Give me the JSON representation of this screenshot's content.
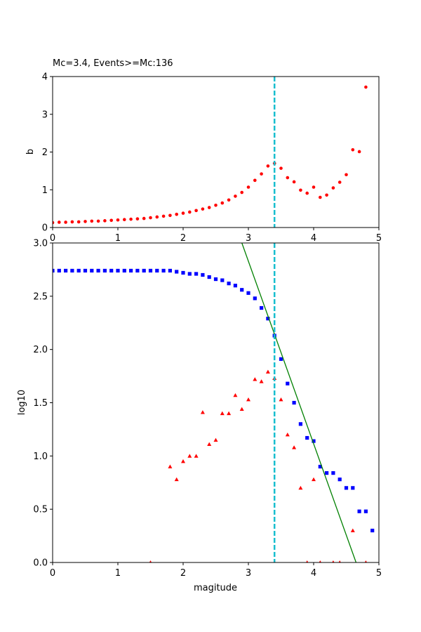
{
  "figure": {
    "title": "Mc=3.4, Events>=Mc:136"
  },
  "chart_data": [
    {
      "type": "scatter",
      "ylabel": "b",
      "xlabel": "",
      "xlim": [
        0,
        5
      ],
      "ylim": [
        0,
        4
      ],
      "xticks": [
        0,
        1,
        2,
        3,
        4,
        5
      ],
      "yticks": [
        0,
        1,
        2,
        3,
        4
      ],
      "grid": false,
      "vline": {
        "x": 3.4,
        "color": "#17becf",
        "style": "dashed"
      },
      "series": [
        {
          "marker": "circle",
          "color": "#ff0000",
          "points": [
            [
              0.0,
              0.13
            ],
            [
              0.1,
              0.14
            ],
            [
              0.2,
              0.14
            ],
            [
              0.3,
              0.15
            ],
            [
              0.4,
              0.15
            ],
            [
              0.5,
              0.16
            ],
            [
              0.6,
              0.17
            ],
            [
              0.7,
              0.17
            ],
            [
              0.8,
              0.18
            ],
            [
              0.9,
              0.19
            ],
            [
              1.0,
              0.2
            ],
            [
              1.1,
              0.21
            ],
            [
              1.2,
              0.22
            ],
            [
              1.3,
              0.23
            ],
            [
              1.4,
              0.24
            ],
            [
              1.5,
              0.26
            ],
            [
              1.6,
              0.28
            ],
            [
              1.7,
              0.3
            ],
            [
              1.8,
              0.32
            ],
            [
              1.9,
              0.35
            ],
            [
              2.0,
              0.38
            ],
            [
              2.1,
              0.41
            ],
            [
              2.2,
              0.45
            ],
            [
              2.3,
              0.49
            ],
            [
              2.4,
              0.53
            ],
            [
              2.5,
              0.59
            ],
            [
              2.6,
              0.65
            ],
            [
              2.7,
              0.73
            ],
            [
              2.8,
              0.83
            ],
            [
              2.9,
              0.93
            ],
            [
              3.0,
              1.07
            ],
            [
              3.1,
              1.25
            ],
            [
              3.2,
              1.42
            ],
            [
              3.3,
              1.63
            ],
            [
              3.4,
              1.7
            ],
            [
              3.5,
              1.57
            ],
            [
              3.6,
              1.32
            ],
            [
              3.7,
              1.21
            ],
            [
              3.8,
              0.99
            ],
            [
              3.9,
              0.91
            ],
            [
              4.0,
              1.07
            ],
            [
              4.1,
              0.8
            ],
            [
              4.2,
              0.86
            ],
            [
              4.3,
              1.05
            ],
            [
              4.4,
              1.2
            ],
            [
              4.5,
              1.4
            ],
            [
              4.6,
              2.06
            ],
            [
              4.7,
              2.01
            ],
            [
              4.8,
              3.72
            ]
          ]
        }
      ]
    },
    {
      "type": "scatter",
      "xlabel": "magitude",
      "ylabel": "log10",
      "xlim": [
        0,
        5
      ],
      "ylim": [
        0,
        3
      ],
      "xticks": [
        0,
        1,
        2,
        3,
        4,
        5
      ],
      "yticks": [
        0.0,
        0.5,
        1.0,
        1.5,
        2.0,
        2.5,
        3.0
      ],
      "grid": false,
      "vline": {
        "x": 3.4,
        "color": "#17becf",
        "style": "dashed"
      },
      "fit_line": {
        "color": "#008000",
        "points": [
          [
            2.9,
            3.0
          ],
          [
            4.65,
            0.0
          ]
        ]
      },
      "series": [
        {
          "marker": "square",
          "color": "#0000ff",
          "points": [
            [
              0.0,
              2.74
            ],
            [
              0.1,
              2.74
            ],
            [
              0.2,
              2.74
            ],
            [
              0.3,
              2.74
            ],
            [
              0.4,
              2.74
            ],
            [
              0.5,
              2.74
            ],
            [
              0.6,
              2.74
            ],
            [
              0.7,
              2.74
            ],
            [
              0.8,
              2.74
            ],
            [
              0.9,
              2.74
            ],
            [
              1.0,
              2.74
            ],
            [
              1.1,
              2.74
            ],
            [
              1.2,
              2.74
            ],
            [
              1.3,
              2.74
            ],
            [
              1.4,
              2.74
            ],
            [
              1.5,
              2.74
            ],
            [
              1.6,
              2.74
            ],
            [
              1.7,
              2.74
            ],
            [
              1.8,
              2.74
            ],
            [
              1.9,
              2.73
            ],
            [
              2.0,
              2.72
            ],
            [
              2.1,
              2.71
            ],
            [
              2.2,
              2.71
            ],
            [
              2.3,
              2.7
            ],
            [
              2.4,
              2.68
            ],
            [
              2.5,
              2.66
            ],
            [
              2.6,
              2.65
            ],
            [
              2.7,
              2.62
            ],
            [
              2.8,
              2.6
            ],
            [
              2.9,
              2.56
            ],
            [
              3.0,
              2.53
            ],
            [
              3.1,
              2.48
            ],
            [
              3.2,
              2.39
            ],
            [
              3.3,
              2.29
            ],
            [
              3.4,
              2.13
            ],
            [
              3.5,
              1.91
            ],
            [
              3.6,
              1.68
            ],
            [
              3.7,
              1.5
            ],
            [
              3.8,
              1.3
            ],
            [
              3.9,
              1.17
            ],
            [
              4.0,
              1.14
            ],
            [
              4.1,
              0.9
            ],
            [
              4.2,
              0.84
            ],
            [
              4.3,
              0.84
            ],
            [
              4.4,
              0.78
            ],
            [
              4.5,
              0.7
            ],
            [
              4.6,
              0.7
            ],
            [
              4.7,
              0.48
            ],
            [
              4.8,
              0.48
            ],
            [
              4.9,
              0.3
            ]
          ]
        },
        {
          "marker": "triangle",
          "color": "#ff0000",
          "points": [
            [
              1.5,
              0.0
            ],
            [
              1.8,
              0.9
            ],
            [
              1.9,
              0.78
            ],
            [
              2.0,
              0.95
            ],
            [
              2.1,
              1.0
            ],
            [
              2.2,
              1.0
            ],
            [
              2.3,
              1.41
            ],
            [
              2.4,
              1.11
            ],
            [
              2.5,
              1.15
            ],
            [
              2.6,
              1.4
            ],
            [
              2.7,
              1.4
            ],
            [
              2.8,
              1.57
            ],
            [
              2.9,
              1.44
            ],
            [
              3.0,
              1.53
            ],
            [
              3.1,
              1.72
            ],
            [
              3.2,
              1.7
            ],
            [
              3.3,
              1.79
            ],
            [
              3.4,
              1.73
            ],
            [
              3.5,
              1.53
            ],
            [
              3.6,
              1.2
            ],
            [
              3.7,
              1.08
            ],
            [
              3.8,
              0.7
            ],
            [
              3.9,
              0.0
            ],
            [
              4.0,
              0.78
            ],
            [
              4.1,
              0.0
            ],
            [
              4.3,
              0.0
            ],
            [
              4.4,
              0.0
            ],
            [
              4.6,
              0.3
            ],
            [
              4.8,
              0.0
            ]
          ]
        }
      ]
    }
  ]
}
